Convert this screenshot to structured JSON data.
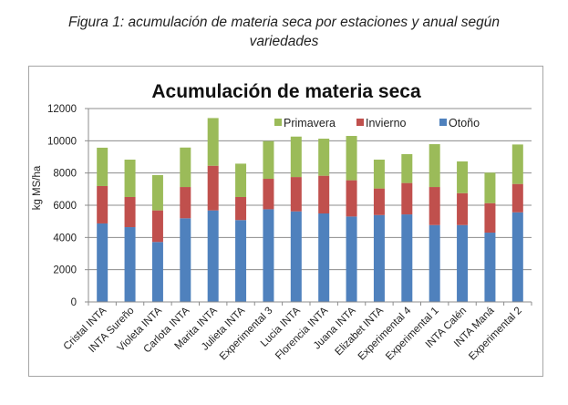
{
  "figure_caption": {
    "line1": "Figura 1: acumulación de materia seca por estaciones y anual según",
    "line2": "variedades"
  },
  "chart_data": {
    "type": "bar",
    "stacked": true,
    "title": "Acumulación de materia seca",
    "xlabel": "",
    "ylabel": "kg MS/ha",
    "ylim": [
      0,
      12000
    ],
    "yticks": [
      0,
      2000,
      4000,
      6000,
      8000,
      10000,
      12000
    ],
    "grid": true,
    "legend_position": "top-right",
    "categories": [
      "Cristal INTA",
      "INTA Sureño",
      "Violeta INTA",
      "Carlota INTA",
      "Marita INTA",
      "Julieta INTA",
      "Experimental 3",
      "Lucia INTA",
      "Florencia INTA",
      "Juana INTA",
      "Elizabet INTA",
      "Experimental 4",
      "Experimental 1",
      "INTA Calén",
      "INTA Maná",
      "Experimental 2"
    ],
    "series": [
      {
        "name": "Otoño",
        "color": "#4F81BD",
        "values": [
          4870,
          4640,
          3720,
          5190,
          5680,
          5080,
          5750,
          5620,
          5490,
          5300,
          5390,
          5430,
          4770,
          4770,
          4300,
          5560
        ]
      },
      {
        "name": "Invierno",
        "color": "#C0504D",
        "values": [
          2320,
          1870,
          1960,
          1940,
          2770,
          1430,
          1890,
          2130,
          2340,
          2250,
          1650,
          1950,
          2360,
          1980,
          1830,
          1760
        ]
      },
      {
        "name": "Primavera",
        "color": "#9BBB59",
        "values": [
          2380,
          2320,
          2190,
          2450,
          2960,
          2070,
          2340,
          2510,
          2300,
          2750,
          1790,
          1790,
          2660,
          1970,
          1890,
          2450
        ]
      }
    ],
    "legend_order": [
      "Primavera",
      "Invierno",
      "Otoño"
    ]
  }
}
